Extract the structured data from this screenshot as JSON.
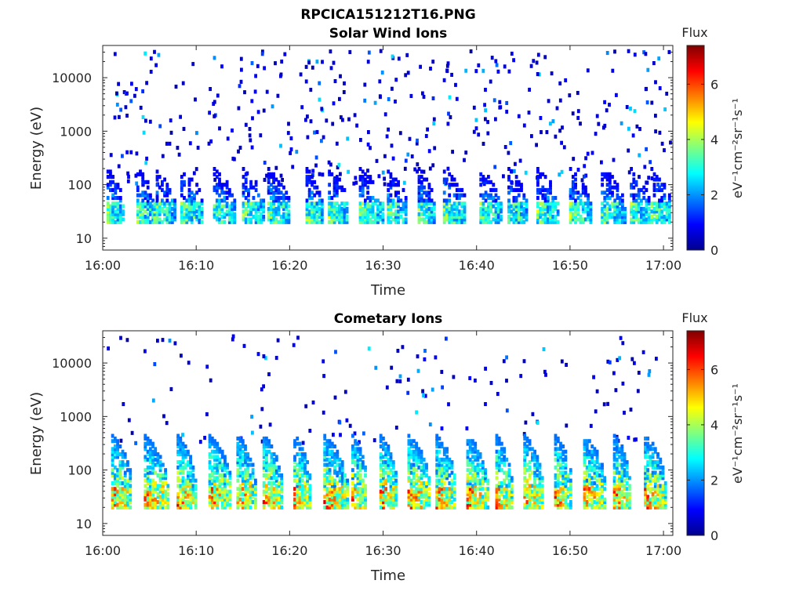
{
  "figure_title": "RPCICA151212T16.PNG",
  "chart_data": [
    {
      "type": "heatmap",
      "title": "Solar Wind Ions",
      "xlabel": "Time",
      "ylabel": "Energy (eV)",
      "xlim": [
        "16:00",
        "17:01"
      ],
      "ylim": [
        6,
        40000
      ],
      "yscale": "log",
      "x_ticks": [
        "16:00",
        "16:10",
        "16:20",
        "16:30",
        "16:40",
        "16:50",
        "17:00"
      ],
      "y_ticks": [
        "10",
        "100",
        "1000",
        "10000"
      ],
      "colorbar": {
        "title": "Flux",
        "label": "eV⁻¹cm⁻²sr⁻¹s⁻¹",
        "range": [
          0,
          7.4
        ],
        "ticks": [
          "0",
          "2",
          "4",
          "6"
        ],
        "colormap": "jet"
      },
      "band_energy_range_eV": [
        20,
        45
      ],
      "band_peak_flux": 4.5,
      "burst_times_min": [
        0.4,
        3.6,
        5.4,
        8.3,
        11.8,
        14.9,
        17.6,
        21.7,
        24.1,
        27.4,
        30.4,
        33.7,
        36.4,
        40.3,
        43.3,
        46.4,
        49.9,
        53.3,
        56.4,
        58.6
      ],
      "background": "sparse single-pixel counts 100–30000 eV, flux 0–2"
    },
    {
      "type": "heatmap",
      "title": "Cometary Ions",
      "xlabel": "Time",
      "ylabel": "Energy (eV)",
      "xlim": [
        "16:00",
        "17:01"
      ],
      "ylim": [
        6,
        40000
      ],
      "yscale": "log",
      "x_ticks": [
        "16:00",
        "16:10",
        "16:20",
        "16:30",
        "16:40",
        "16:50",
        "17:00"
      ],
      "y_ticks": [
        "10",
        "100",
        "1000",
        "10000"
      ],
      "colorbar": {
        "title": "Flux",
        "label": "eV⁻¹cm⁻²sr⁻¹s⁻¹",
        "range": [
          0,
          7.4
        ],
        "ticks": [
          "0",
          "2",
          "4",
          "6"
        ],
        "colormap": "jet"
      },
      "band_energy_range_eV": [
        20,
        45
      ],
      "band_peak_flux": 6.8,
      "burst_times_min": [
        0.9,
        4.4,
        7.9,
        11.3,
        14.3,
        17.1,
        20.4,
        23.6,
        26.6,
        29.6,
        32.6,
        35.6,
        38.9,
        42.0,
        45.0,
        48.3,
        51.4,
        54.6,
        57.9
      ],
      "background": "sparse single-pixel counts 300–20000 eV, flux 0–2"
    }
  ]
}
